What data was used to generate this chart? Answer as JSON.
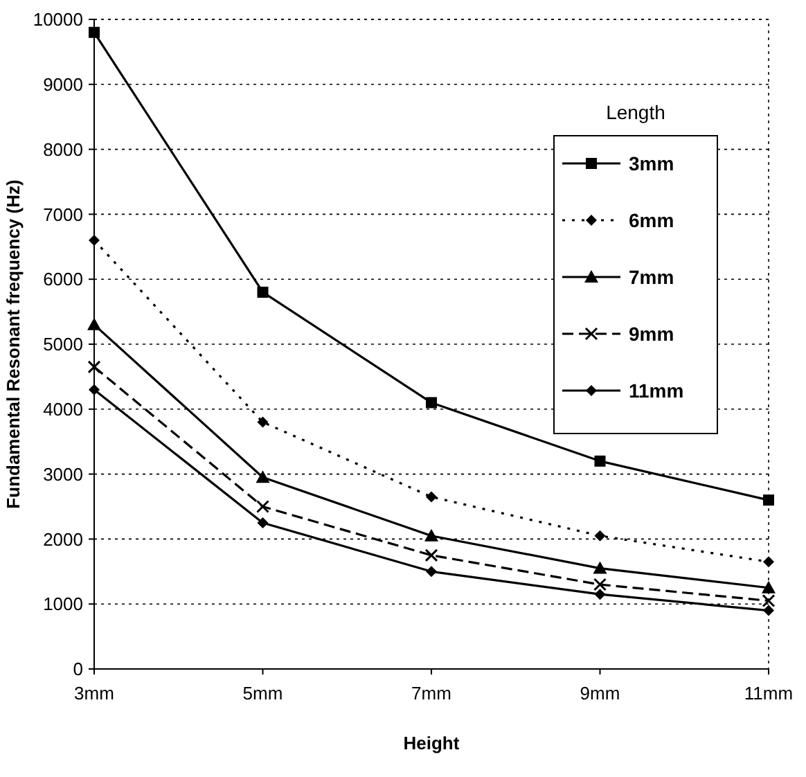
{
  "chart_data": {
    "type": "line",
    "xlabel": "Height",
    "ylabel": "Fundamental Resonant frequency (Hz)",
    "legend_title": "Length",
    "categories": [
      "3mm",
      "5mm",
      "7mm",
      "9mm",
      "11mm"
    ],
    "series": [
      {
        "name": "3mm",
        "color": "#000000",
        "marker": "square",
        "line_style": "solid",
        "values": [
          9800,
          5800,
          4100,
          3200,
          2600
        ]
      },
      {
        "name": "6mm",
        "color": "#000000",
        "marker": "diamond",
        "line_style": "dotted",
        "values": [
          6600,
          3800,
          2650,
          2050,
          1650
        ]
      },
      {
        "name": "7mm",
        "color": "#000000",
        "marker": "triangle",
        "line_style": "solid",
        "values": [
          5300,
          2950,
          2050,
          1550,
          1250
        ]
      },
      {
        "name": "9mm",
        "color": "#000000",
        "marker": "cross",
        "line_style": "dashed",
        "values": [
          4650,
          2500,
          1750,
          1300,
          1050
        ]
      },
      {
        "name": "11mm",
        "color": "#000000",
        "marker": "diamond",
        "line_style": "solid",
        "values": [
          4300,
          2250,
          1500,
          1150,
          900
        ]
      }
    ],
    "ylim": [
      0,
      10000
    ],
    "yticks": [
      0,
      1000,
      2000,
      3000,
      4000,
      5000,
      6000,
      7000,
      8000,
      9000,
      10000
    ],
    "grid": "y",
    "legend": "top right"
  }
}
